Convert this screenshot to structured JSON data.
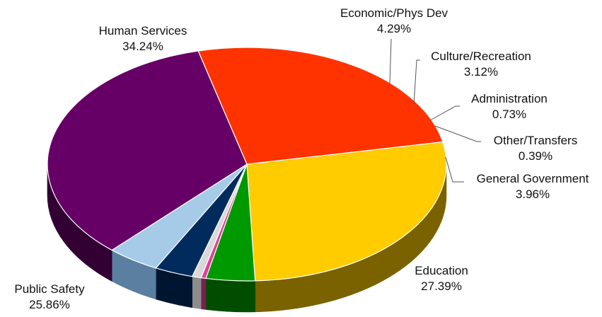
{
  "chart_data": {
    "type": "pie",
    "title": "",
    "legend": "none",
    "slices": [
      {
        "label": "Education",
        "value": 27.39,
        "value_label": "27.39%",
        "color": "#FFCC00",
        "side_color": "#7A6200"
      },
      {
        "label": "General Government",
        "value": 3.96,
        "value_label": "3.96%",
        "color": "#009900",
        "side_color": "#004D00"
      },
      {
        "label": "Other/Transfers",
        "value": 0.39,
        "value_label": "0.39%",
        "color": "#E0409A",
        "side_color": "#7A1F52"
      },
      {
        "label": "Administration",
        "value": 0.73,
        "value_label": "0.73%",
        "color": "#D9D9D9",
        "side_color": "#8C8C8C"
      },
      {
        "label": "Culture/Recreation",
        "value": 3.12,
        "value_label": "3.12%",
        "color": "#002B5C",
        "side_color": "#001530"
      },
      {
        "label": "Economic/Phys Dev",
        "value": 4.29,
        "value_label": "4.29%",
        "color": "#A6CBE8",
        "side_color": "#5A7FA0"
      },
      {
        "label": "Human Services",
        "value": 34.24,
        "value_label": "34.24%",
        "color": "#660066",
        "side_color": "#330033"
      },
      {
        "label": "Public Safety",
        "value": 25.86,
        "value_label": "25.86%",
        "color": "#FF3300",
        "side_color": "#8A1A00"
      }
    ]
  }
}
